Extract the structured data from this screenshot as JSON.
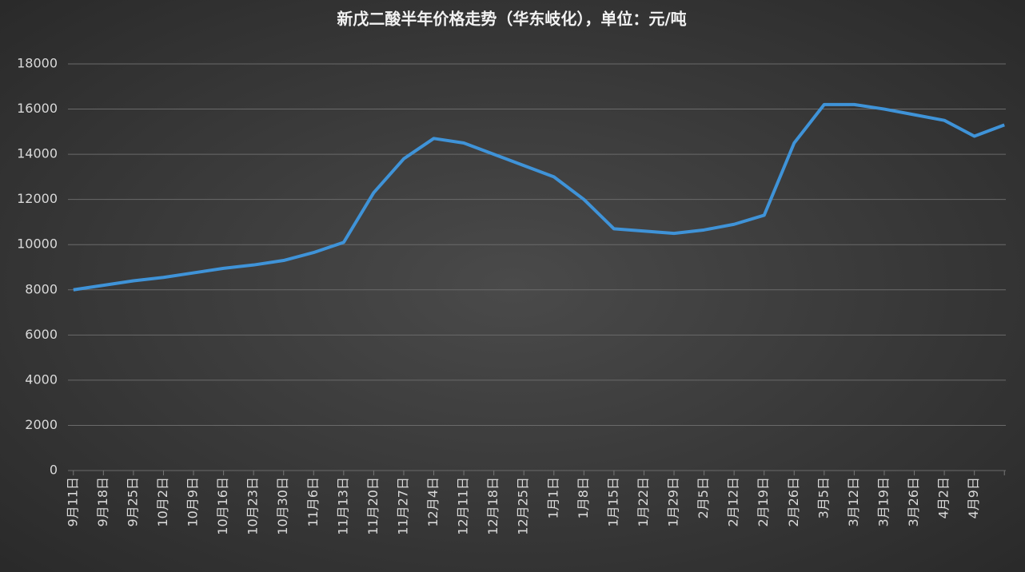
{
  "chart_data": {
    "type": "line",
    "title": "新戊二酸半年价格走势（华东岐化），单位：元/吨",
    "categories": [
      "9月11日",
      "9月18日",
      "9月25日",
      "10月2日",
      "10月9日",
      "10月16日",
      "10月23日",
      "10月30日",
      "11月6日",
      "11月13日",
      "11月20日",
      "11月27日",
      "12月4日",
      "12月11日",
      "12月18日",
      "12月25日",
      "1月1日",
      "1月8日",
      "1月15日",
      "1月22日",
      "1月29日",
      "2月5日",
      "2月12日",
      "2月19日",
      "2月26日",
      "3月5日",
      "3月12日",
      "3月19日",
      "3月26日",
      "4月2日",
      "4月9日",
      null
    ],
    "values": [
      8000,
      8200,
      8400,
      8550,
      8750,
      8950,
      9100,
      9300,
      9650,
      10100,
      12300,
      13800,
      14700,
      14500,
      14000,
      13500,
      13000,
      12000,
      10700,
      10600,
      10500,
      10650,
      10900,
      11300,
      14500,
      16200,
      16200,
      16000,
      15750,
      15500,
      14800,
      15300
    ],
    "color": "#3f93d8",
    "ylim": [
      0,
      18000
    ],
    "yticks": [
      0,
      2000,
      4000,
      6000,
      8000,
      10000,
      12000,
      14000,
      16000,
      18000
    ],
    "grid": true
  }
}
